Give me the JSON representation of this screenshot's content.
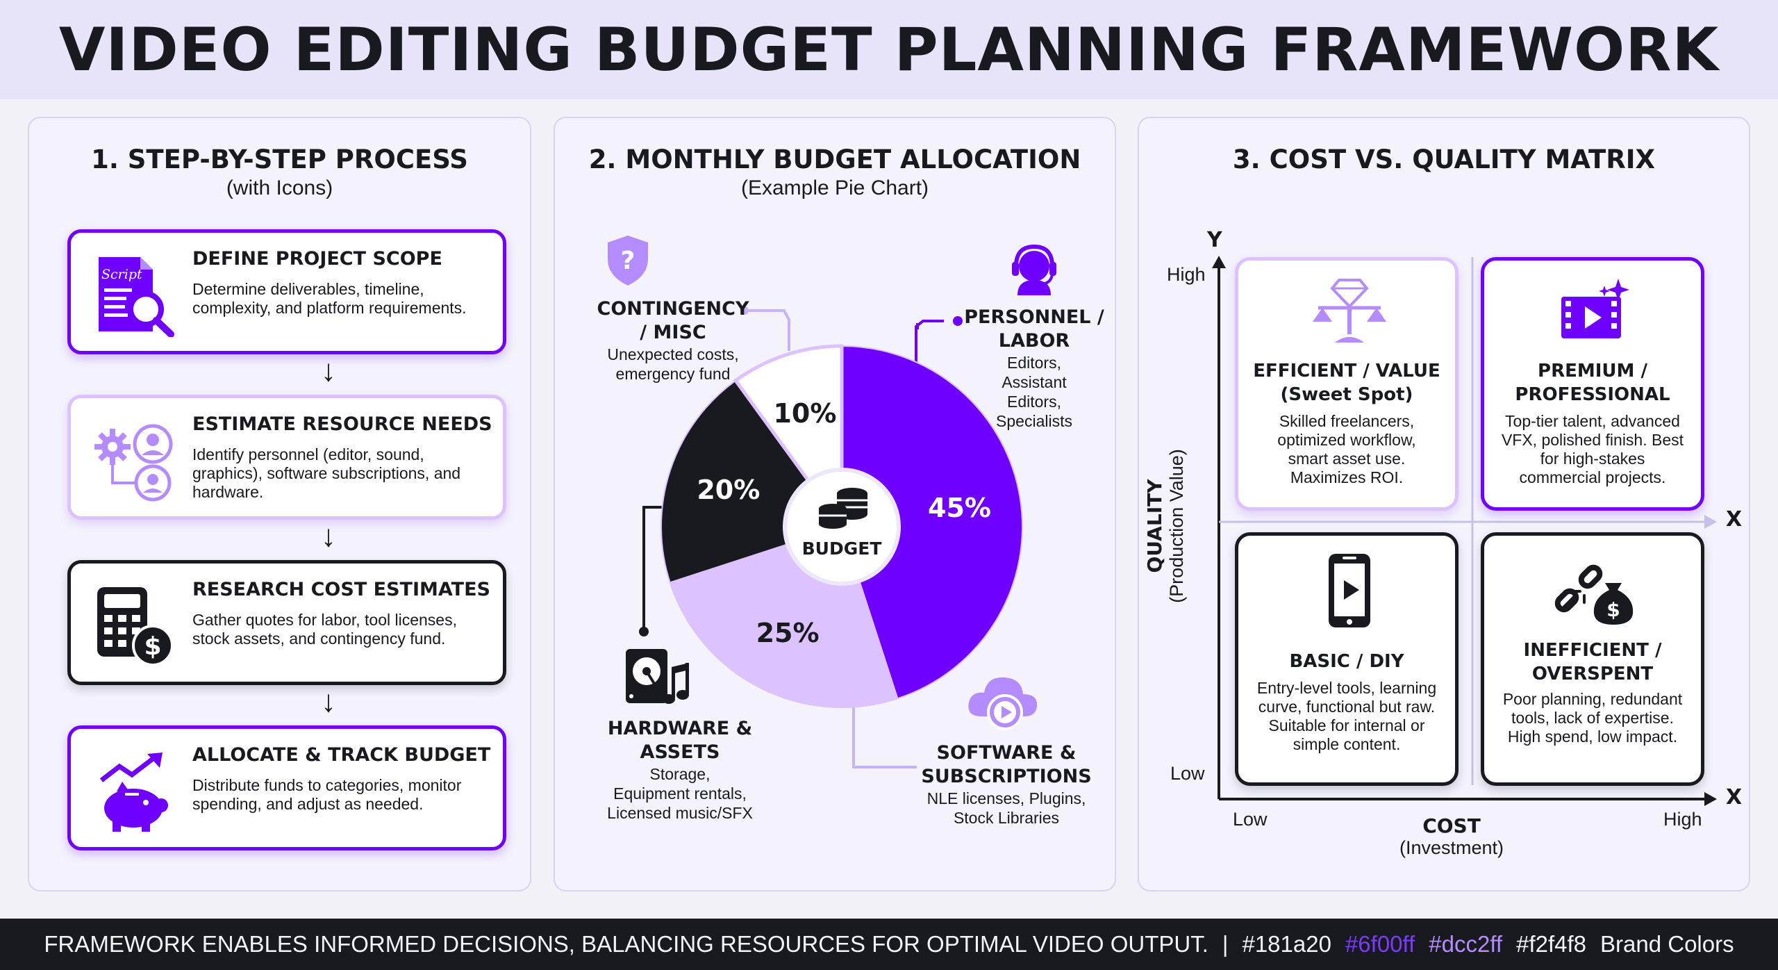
{
  "title": "VIDEO EDITING BUDGET PLANNING FRAMEWORK",
  "panels": {
    "process": {
      "heading": "1. STEP-BY-STEP PROCESS",
      "subheading": "(with Icons)",
      "steps": [
        {
          "title": "DEFINE PROJECT SCOPE",
          "desc": "Determine deliverables, timeline, complexity, and platform requirements.",
          "icon": "script-magnifier-icon",
          "icon_text": "Script"
        },
        {
          "title": "ESTIMATE RESOURCE NEEDS",
          "desc": "Identify personnel (editor, sound, graphics), software subscriptions, and hardware.",
          "icon": "gear-people-icon"
        },
        {
          "title": "RESEARCH COST ESTIMATES",
          "desc": "Gather quotes for labor, tool licenses, stock assets, and contingency fund.",
          "icon": "calculator-dollar-icon"
        },
        {
          "title": "ALLOCATE & TRACK BUDGET",
          "desc": "Distribute funds to categories, monitor spending, and adjust as needed.",
          "icon": "piggy-bank-icon"
        }
      ]
    },
    "allocation": {
      "heading": "2. MONTHLY BUDGET ALLOCATION",
      "subheading": "(Example Pie Chart)",
      "center_label": "BUDGET",
      "slices": [
        {
          "pct_label": "45%",
          "value": 45,
          "color": "#6f00ff",
          "title": "PERSONNEL / LABOR",
          "title_lines": [
            "PERSONNEL /",
            "LABOR"
          ],
          "desc_lines": [
            "Editors,",
            "Assistant",
            "Editors,",
            "Specialists"
          ],
          "icon": "headset-person-icon"
        },
        {
          "pct_label": "25%",
          "value": 25,
          "color": "#dcc2ff",
          "title": "SOFTWARE & SUBSCRIPTIONS",
          "title_lines": [
            "SOFTWARE &",
            "SUBSCRIPTIONS"
          ],
          "desc_lines": [
            "NLE licenses, Plugins,",
            "Stock Libraries"
          ],
          "icon": "cloud-play-icon"
        },
        {
          "pct_label": "20%",
          "value": 20,
          "color": "#181a20",
          "title": "HARDWARE & ASSETS",
          "title_lines": [
            "HARDWARE &",
            "ASSETS"
          ],
          "desc_lines": [
            "Storage,",
            "Equipment rentals,",
            "Licensed music/SFX"
          ],
          "icon": "harddrive-music-icon"
        },
        {
          "pct_label": "10%",
          "value": 10,
          "color": "#ffffff",
          "title": "CONTINGENCY / MISC",
          "title_lines": [
            "CONTINGENCY",
            "/ MISC"
          ],
          "desc_lines": [
            "Unexpected costs,",
            "emergency fund"
          ],
          "icon": "shield-question-icon"
        }
      ]
    },
    "matrix": {
      "heading": "3. COST VS. QUALITY MATRIX",
      "y_axis_letter": "Y",
      "x_axis_letter": "X",
      "y_high": "High",
      "y_low": "Low",
      "x_low": "Low",
      "x_high": "High",
      "y_label": "QUALITY",
      "y_sublabel": "(Production Value)",
      "x_label": "COST",
      "x_sublabel": "(Investment)",
      "quadrants": [
        {
          "title_lines": [
            "EFFICIENT / VALUE",
            "(Sweet Spot)"
          ],
          "desc_lines": [
            "Skilled freelancers,",
            "optimized workflow,",
            "smart asset use.",
            "Maximizes ROI."
          ],
          "icon": "diamond-scale-icon"
        },
        {
          "title_lines": [
            "PREMIUM /",
            "PROFESSIONAL"
          ],
          "desc_lines": [
            "Top-tier talent, advanced",
            "VFX, polished finish. Best",
            "for high-stakes",
            "commercial projects."
          ],
          "icon": "film-sparkle-icon"
        },
        {
          "title_lines": [
            "BASIC / DIY"
          ],
          "desc_lines": [
            "Entry-level tools, learning",
            "curve, functional but raw.",
            "Suitable for internal or",
            "simple content."
          ],
          "icon": "phone-play-icon"
        },
        {
          "title_lines": [
            "INEFFICIENT /",
            "OVERSPENT"
          ],
          "desc_lines": [
            "Poor planning, redundant",
            "tools, lack of expertise.",
            "High spend, low impact."
          ],
          "icon": "broken-chain-moneybag-icon"
        }
      ]
    }
  },
  "footer": {
    "text": "FRAMEWORK ENABLES INFORMED DECISIONS, BALANCING RESOURCES FOR OPTIMAL VIDEO OUTPUT.",
    "separator": "|",
    "colors": [
      {
        "label": "#181a20",
        "color": "#f2f4f8"
      },
      {
        "label": "#6f00ff",
        "color": "#7a3bff"
      },
      {
        "label": "#dcc2ff",
        "color": "#b48cff"
      },
      {
        "label": "#f2f4f8",
        "color": "#f2f4f8"
      }
    ],
    "suffix": "Brand Colors"
  }
}
